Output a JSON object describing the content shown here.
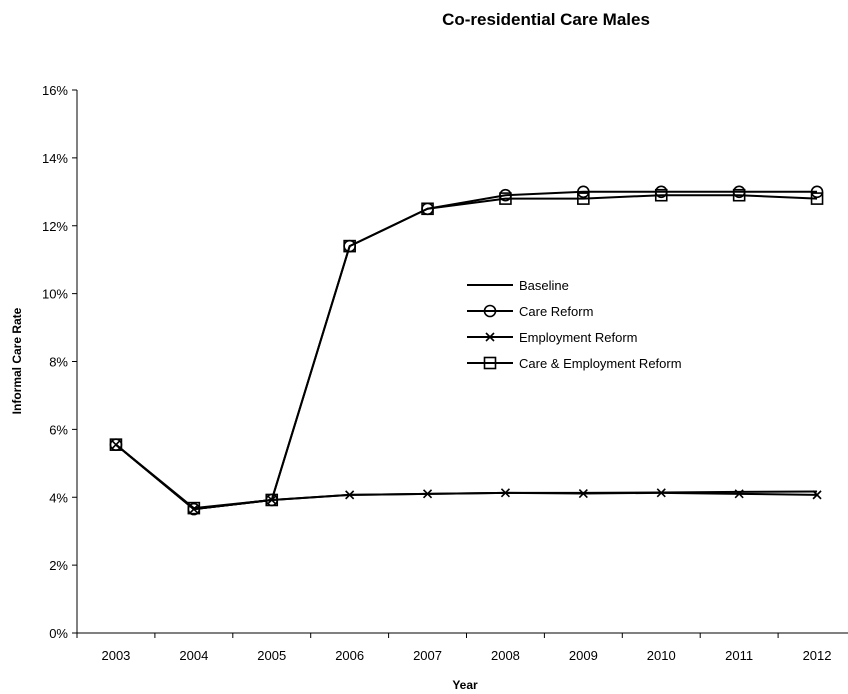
{
  "chart_data": {
    "type": "line",
    "title": "Co-residential Care Males",
    "xlabel": "Year",
    "ylabel": "Informal Care Rate",
    "x": [
      "2003",
      "2004",
      "2005",
      "2006",
      "2007",
      "2008",
      "2009",
      "2010",
      "2011",
      "2012"
    ],
    "ylim": [
      0,
      16
    ],
    "yticks": [
      0,
      2,
      4,
      6,
      8,
      10,
      12,
      14,
      16
    ],
    "ytick_labels": [
      "0%",
      "2%",
      "4%",
      "6%",
      "8%",
      "10%",
      "12%",
      "14%",
      "16%"
    ],
    "grid": false,
    "legend_position": "center-right",
    "series": [
      {
        "name": "Baseline",
        "marker": "none",
        "values": [
          5.55,
          3.65,
          3.92,
          4.07,
          4.1,
          4.13,
          4.13,
          4.14,
          4.16,
          4.17
        ]
      },
      {
        "name": "Care Reform",
        "marker": "circle",
        "values": [
          5.55,
          3.65,
          3.92,
          11.4,
          12.5,
          12.9,
          13.0,
          13.0,
          13.0,
          13.0
        ]
      },
      {
        "name": "Employment Reform",
        "marker": "x",
        "values": [
          5.55,
          3.65,
          3.92,
          4.07,
          4.1,
          4.13,
          4.11,
          4.13,
          4.1,
          4.07
        ]
      },
      {
        "name": "Care & Employment Reform",
        "marker": "square",
        "values": [
          5.55,
          3.68,
          3.92,
          11.4,
          12.5,
          12.8,
          12.8,
          12.9,
          12.9,
          12.8
        ]
      }
    ]
  }
}
